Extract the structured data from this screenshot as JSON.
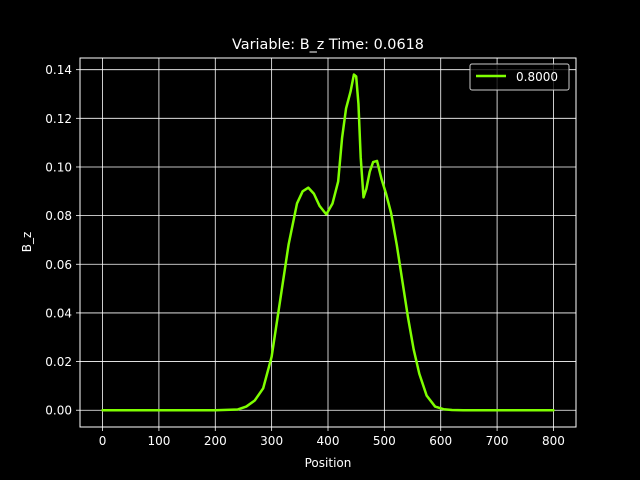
{
  "chart_data": {
    "type": "line",
    "title": "Variable: B_z Time: 0.0618",
    "xlabel": "Position",
    "ylabel": "B_z",
    "xlim": [
      -40,
      840
    ],
    "ylim": [
      -0.0069,
      0.1448
    ],
    "xticks": [
      0,
      100,
      200,
      300,
      400,
      500,
      600,
      700,
      800
    ],
    "yticks": [
      0.0,
      0.02,
      0.04,
      0.06,
      0.08,
      0.1,
      0.12,
      0.14
    ],
    "xtick_labels": [
      "0",
      "100",
      "200",
      "300",
      "400",
      "500",
      "600",
      "700",
      "800"
    ],
    "ytick_labels": [
      "0.00",
      "0.02",
      "0.04",
      "0.06",
      "0.08",
      "0.10",
      "0.12",
      "0.14"
    ],
    "grid": true,
    "legend_position": "top-right",
    "background": "#000000",
    "foreground": "#ffffff",
    "series": [
      {
        "name": "0.8000",
        "color": "#7fff00",
        "x": [
          0,
          100,
          200,
          240,
          255,
          270,
          285,
          300,
          315,
          330,
          345,
          355,
          365,
          375,
          385,
          397,
          408,
          418,
          425,
          432,
          440,
          446,
          450,
          454,
          458,
          463,
          468,
          474,
          480,
          487,
          495,
          503,
          512,
          522,
          532,
          542,
          552,
          562,
          575,
          590,
          605,
          620,
          640,
          700,
          800
        ],
        "y": [
          0.0,
          0.0,
          0.0,
          0.0003,
          0.0015,
          0.004,
          0.009,
          0.022,
          0.045,
          0.068,
          0.085,
          0.09,
          0.0915,
          0.089,
          0.084,
          0.0805,
          0.085,
          0.094,
          0.112,
          0.124,
          0.131,
          0.138,
          0.1372,
          0.126,
          0.104,
          0.0875,
          0.091,
          0.098,
          0.102,
          0.1025,
          0.095,
          0.089,
          0.081,
          0.068,
          0.053,
          0.038,
          0.025,
          0.015,
          0.006,
          0.0015,
          0.0004,
          0.0001,
          0.0,
          0.0,
          0.0
        ]
      }
    ]
  }
}
